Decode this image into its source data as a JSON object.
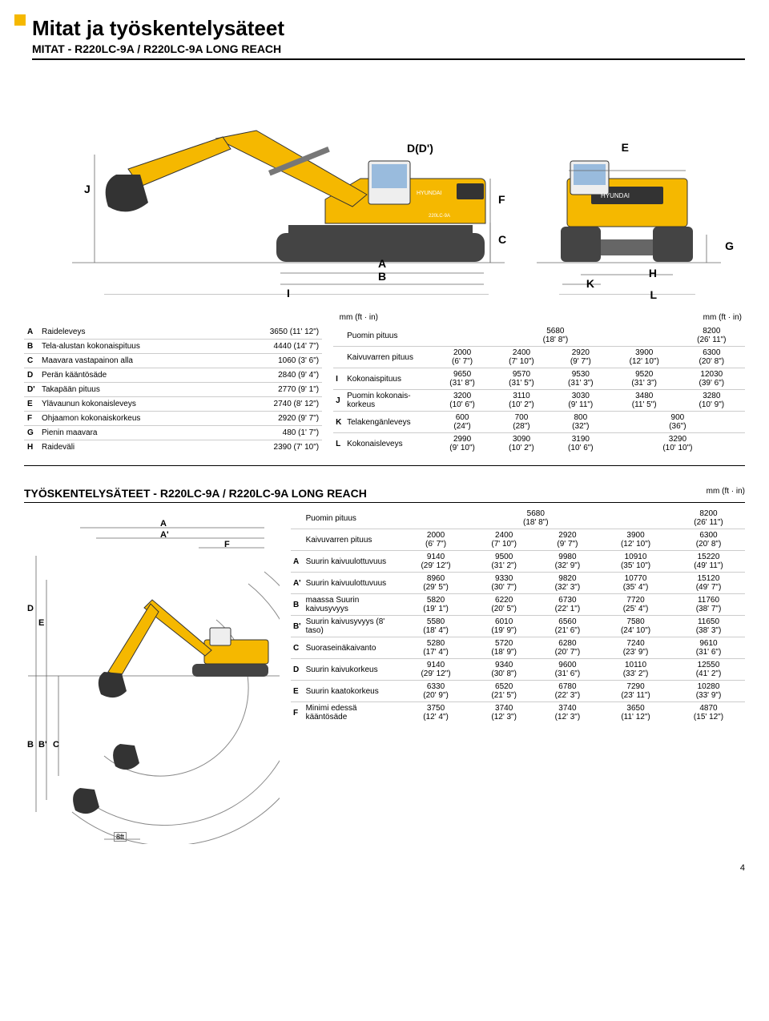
{
  "title": "Mitat ja työskentelysäteet",
  "subtitle_prefix": "MITAT - ",
  "model": "R220LC-9A / R220LC-9A LONG REACH",
  "unit_label": "mm (ft · in)",
  "accent_color": "#f5b800",
  "page_number": "4",
  "dim_labels": {
    "J": "J",
    "I": "I",
    "A": "A",
    "B": "B",
    "C": "C",
    "D": "D(D')",
    "E": "E",
    "F": "F",
    "G": "G",
    "H": "H",
    "K": "K",
    "L": "L"
  },
  "dims_left": [
    {
      "code": "A",
      "name": "Raideleveys",
      "val": "3650 (11' 12\")"
    },
    {
      "code": "B",
      "name": "Tela-alustan kokonaispituus",
      "val": "4440 (14' 7\")"
    },
    {
      "code": "C",
      "name": "Maavara vastapainon alla",
      "val": "1060 (3' 6\")"
    },
    {
      "code": "D",
      "name": "Perän kääntösäde",
      "val": "2840 (9' 4\")"
    },
    {
      "code": "D'",
      "name": "Takapään pituus",
      "val": "2770 (9' 1\")"
    },
    {
      "code": "E",
      "name": "Ylävaunun kokonaisleveys",
      "val": "2740 (8' 12\")"
    },
    {
      "code": "F",
      "name": "Ohjaamon kokonaiskorkeus",
      "val": "2920 (9' 7\")"
    },
    {
      "code": "G",
      "name": "Pienin maavara",
      "val": "480 (1' 7\")"
    },
    {
      "code": "H",
      "name": "Raideväli",
      "val": "2390 (7' 10\")"
    }
  ],
  "dims_right_headers": {
    "boom": "Puomin pituus",
    "arm": "Kaivuvarren pituus",
    "I": "Kokonaispituus",
    "J": "Puomin kokonais­korkeus",
    "K": "Telakengänleveys",
    "L": "Kokonaisleveys"
  },
  "dims_right": {
    "boom_vals": [
      {
        "mm": "5680",
        "ft": "(18' 8\")",
        "span": 4
      },
      {
        "mm": "8200",
        "ft": "(26' 11\")",
        "span": 1
      }
    ],
    "arm_vals": [
      {
        "mm": "2000",
        "ft": "(6' 7\")"
      },
      {
        "mm": "2400",
        "ft": "(7' 10\")"
      },
      {
        "mm": "2920",
        "ft": "(9' 7\")"
      },
      {
        "mm": "3900",
        "ft": "(12' 10\")"
      },
      {
        "mm": "6300",
        "ft": "(20' 8\")"
      }
    ],
    "rows": [
      {
        "code": "I",
        "label": "Kokonaispituus",
        "vals": [
          {
            "mm": "9650",
            "ft": "(31' 8\")"
          },
          {
            "mm": "9570",
            "ft": "(31' 5\")"
          },
          {
            "mm": "9530",
            "ft": "(31' 3\")"
          },
          {
            "mm": "9520",
            "ft": "(31' 3\")"
          },
          {
            "mm": "12030",
            "ft": "(39' 6\")"
          }
        ]
      },
      {
        "code": "J",
        "label": "Puomin kokonais-korkeus",
        "vals": [
          {
            "mm": "3200",
            "ft": "(10' 6\")"
          },
          {
            "mm": "3110",
            "ft": "(10' 2\")"
          },
          {
            "mm": "3030",
            "ft": "(9' 11\")"
          },
          {
            "mm": "3480",
            "ft": "(11' 5\")"
          },
          {
            "mm": "3280",
            "ft": "(10' 9\")"
          }
        ]
      },
      {
        "code": "K",
        "label": "Telakengänleveys",
        "vals": [
          {
            "mm": "600",
            "ft": "(24\")"
          },
          {
            "mm": "700",
            "ft": "(28\")"
          },
          {
            "mm": "800",
            "ft": "(32\")"
          },
          {
            "mm": "900",
            "ft": "(36\")"
          }
        ]
      },
      {
        "code": "L",
        "label": "Kokonaisleveys",
        "vals": [
          {
            "mm": "2990",
            "ft": "(9' 10\")"
          },
          {
            "mm": "3090",
            "ft": "(10' 2\")"
          },
          {
            "mm": "3190",
            "ft": "(10' 6\")"
          },
          {
            "mm": "3290",
            "ft": "(10' 10\")"
          }
        ]
      }
    ]
  },
  "section2_prefix": "TYÖSKENTELYSÄTEET - ",
  "range_headers": {
    "boom": "Puomin pituus",
    "arm": "Kaivuvarren pituus"
  },
  "range": {
    "boom_vals": [
      {
        "mm": "5680",
        "ft": "(18' 8\")",
        "span": 4
      },
      {
        "mm": "8200",
        "ft": "(26' 11\")",
        "span": 1
      }
    ],
    "arm_vals": [
      {
        "mm": "2000",
        "ft": "(6' 7\")"
      },
      {
        "mm": "2400",
        "ft": "(7' 10\")"
      },
      {
        "mm": "2920",
        "ft": "(9' 7\")"
      },
      {
        "mm": "3900",
        "ft": "(12' 10\")"
      },
      {
        "mm": "6300",
        "ft": "(20' 8\")"
      }
    ],
    "rows": [
      {
        "code": "A",
        "label": "Suurin kaivuulottuvuus",
        "vals": [
          {
            "mm": "9140",
            "ft": "(29' 12\")"
          },
          {
            "mm": "9500",
            "ft": "(31' 2\")"
          },
          {
            "mm": "9980",
            "ft": "(32' 9\")"
          },
          {
            "mm": "10910",
            "ft": "(35' 10\")"
          },
          {
            "mm": "15220",
            "ft": "(49' 11\")"
          }
        ]
      },
      {
        "code": "A'",
        "label": "Suurin kaivuulottuvuus",
        "vals": [
          {
            "mm": "8960",
            "ft": "(29' 5\")"
          },
          {
            "mm": "9330",
            "ft": "(30' 7\")"
          },
          {
            "mm": "9820",
            "ft": "(32' 3\")"
          },
          {
            "mm": "10770",
            "ft": "(35' 4\")"
          },
          {
            "mm": "15120",
            "ft": "(49' 7\")"
          }
        ]
      },
      {
        "code": "B",
        "label": "maassa Suurin kaivusyvyys",
        "vals": [
          {
            "mm": "5820",
            "ft": "(19' 1\")"
          },
          {
            "mm": "6220",
            "ft": "(20' 5\")"
          },
          {
            "mm": "6730",
            "ft": "(22' 1\")"
          },
          {
            "mm": "7720",
            "ft": "(25' 4\")"
          },
          {
            "mm": "11760",
            "ft": "(38' 7\")"
          }
        ]
      },
      {
        "code": "B'",
        "label": "Suurin kaivusyvyys (8' taso)",
        "vals": [
          {
            "mm": "5580",
            "ft": "(18' 4\")"
          },
          {
            "mm": "6010",
            "ft": "(19' 9\")"
          },
          {
            "mm": "6560",
            "ft": "(21' 6\")"
          },
          {
            "mm": "7580",
            "ft": "(24' 10\")"
          },
          {
            "mm": "11650",
            "ft": "(38' 3\")"
          }
        ]
      },
      {
        "code": "C",
        "label": "Suoraseinäkaivanto",
        "vals": [
          {
            "mm": "5280",
            "ft": "(17' 4\")"
          },
          {
            "mm": "5720",
            "ft": "(18' 9\")"
          },
          {
            "mm": "6280",
            "ft": "(20' 7\")"
          },
          {
            "mm": "7240",
            "ft": "(23' 9\")"
          },
          {
            "mm": "9610",
            "ft": "(31' 6\")"
          }
        ]
      },
      {
        "code": "D",
        "label": "Suurin kaivukorkeus",
        "vals": [
          {
            "mm": "9140",
            "ft": "(29' 12\")"
          },
          {
            "mm": "9340",
            "ft": "(30' 8\")"
          },
          {
            "mm": "9600",
            "ft": "(31' 6\")"
          },
          {
            "mm": "10110",
            "ft": "(33' 2\")"
          },
          {
            "mm": "12550",
            "ft": "(41' 2\")"
          }
        ]
      },
      {
        "code": "E",
        "label": "Suurin kaatokorkeus",
        "vals": [
          {
            "mm": "6330",
            "ft": "(20' 9\")"
          },
          {
            "mm": "6520",
            "ft": "(21' 5\")"
          },
          {
            "mm": "6780",
            "ft": "(22' 3\")"
          },
          {
            "mm": "7290",
            "ft": "(23' 11\")"
          },
          {
            "mm": "10280",
            "ft": "(33' 9\")"
          }
        ]
      },
      {
        "code": "F",
        "label": "Minimi edessä kääntösäde",
        "vals": [
          {
            "mm": "3750",
            "ft": "(12' 4\")"
          },
          {
            "mm": "3740",
            "ft": "(12' 3\")"
          },
          {
            "mm": "3740",
            "ft": "(12' 3\")"
          },
          {
            "mm": "3650",
            "ft": "(11' 12\")"
          },
          {
            "mm": "4870",
            "ft": "(15' 12\")"
          }
        ]
      }
    ]
  },
  "ft8": "8ft",
  "range_dim_labels": {
    "A": "A",
    "Ap": "A'",
    "B": "B",
    "Bp": "B'",
    "C": "C",
    "D": "D",
    "E": "E",
    "F": "F"
  }
}
